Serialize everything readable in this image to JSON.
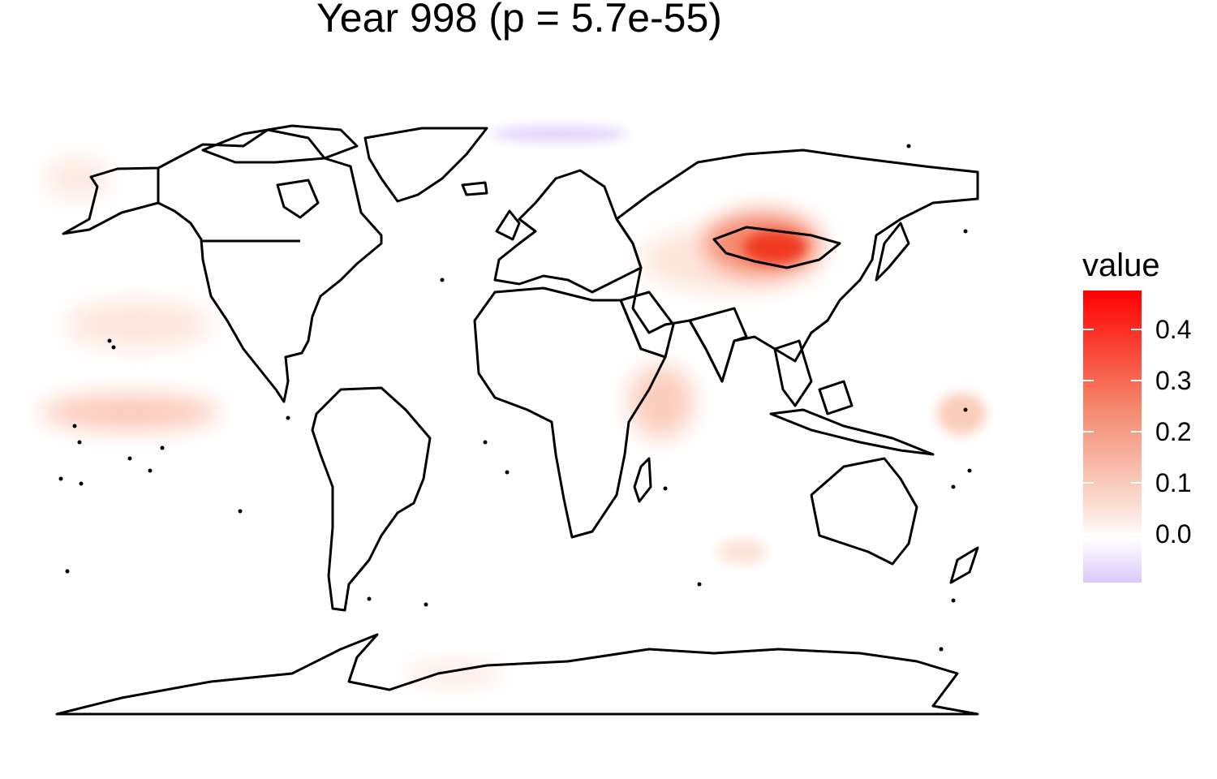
{
  "title": "Year 998 (p = 5.7e-55)",
  "legend": {
    "title": "value",
    "ticks": [
      "0.4",
      "0.3",
      "0.2",
      "0.1",
      "0.0"
    ],
    "range": [
      -0.06,
      0.47
    ],
    "colors": {
      "low": "#d9c8fb",
      "mid": "#ffffff",
      "high": "#ff0000"
    }
  },
  "chart_data": {
    "type": "heatmap",
    "title": "Year 998 (p = 5.7e-55)",
    "legend_title": "value",
    "color_scale": {
      "min": -0.06,
      "zero": 0.0,
      "max": 0.47,
      "low_color": "#d9c8fb",
      "high_color": "#ff0000"
    },
    "hotspots": [
      {
        "region": "Mongolia / northern China",
        "value": 0.47
      },
      {
        "region": "Equatorial central Pacific",
        "value": 0.15
      },
      {
        "region": "East Africa / western Indian Ocean",
        "value": 0.15
      },
      {
        "region": "Western tropical Pacific",
        "value": 0.12
      },
      {
        "region": "Arctic Ocean north of Norway",
        "value": -0.05
      }
    ]
  }
}
